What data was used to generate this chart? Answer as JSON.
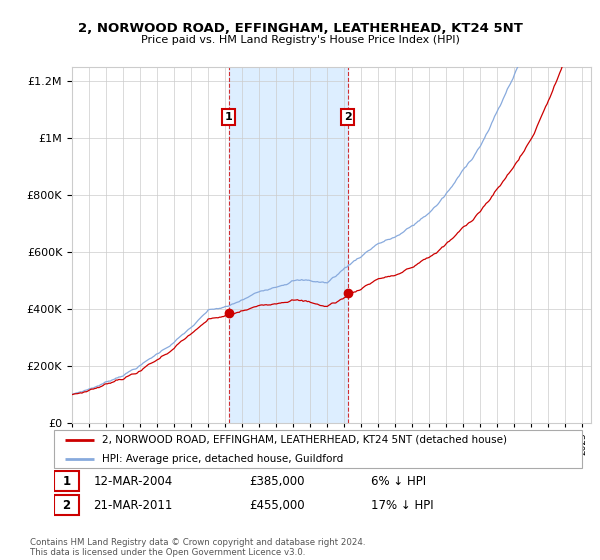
{
  "title": "2, NORWOOD ROAD, EFFINGHAM, LEATHERHEAD, KT24 5NT",
  "subtitle": "Price paid vs. HM Land Registry's House Price Index (HPI)",
  "sale1_x": 2004.208,
  "sale1_price": 385000,
  "sale2_x": 2011.208,
  "sale2_price": 455000,
  "legend_property": "2, NORWOOD ROAD, EFFINGHAM, LEATHERHEAD, KT24 5NT (detached house)",
  "legend_hpi": "HPI: Average price, detached house, Guildford",
  "footer_line1": "Contains HM Land Registry data © Crown copyright and database right 2024.",
  "footer_line2": "This data is licensed under the Open Government Licence v3.0.",
  "table_row1": [
    "1",
    "12-MAR-2004",
    "£385,000",
    "6% ↓ HPI"
  ],
  "table_row2": [
    "2",
    "21-MAR-2011",
    "£455,000",
    "17% ↓ HPI"
  ],
  "property_color": "#cc0000",
  "hpi_color": "#88aadd",
  "shade_color": "#ddeeff",
  "ylim_min": 0,
  "ylim_max": 1250000,
  "ytick_step": 200000,
  "xmin": 1995,
  "xmax": 2025.5
}
